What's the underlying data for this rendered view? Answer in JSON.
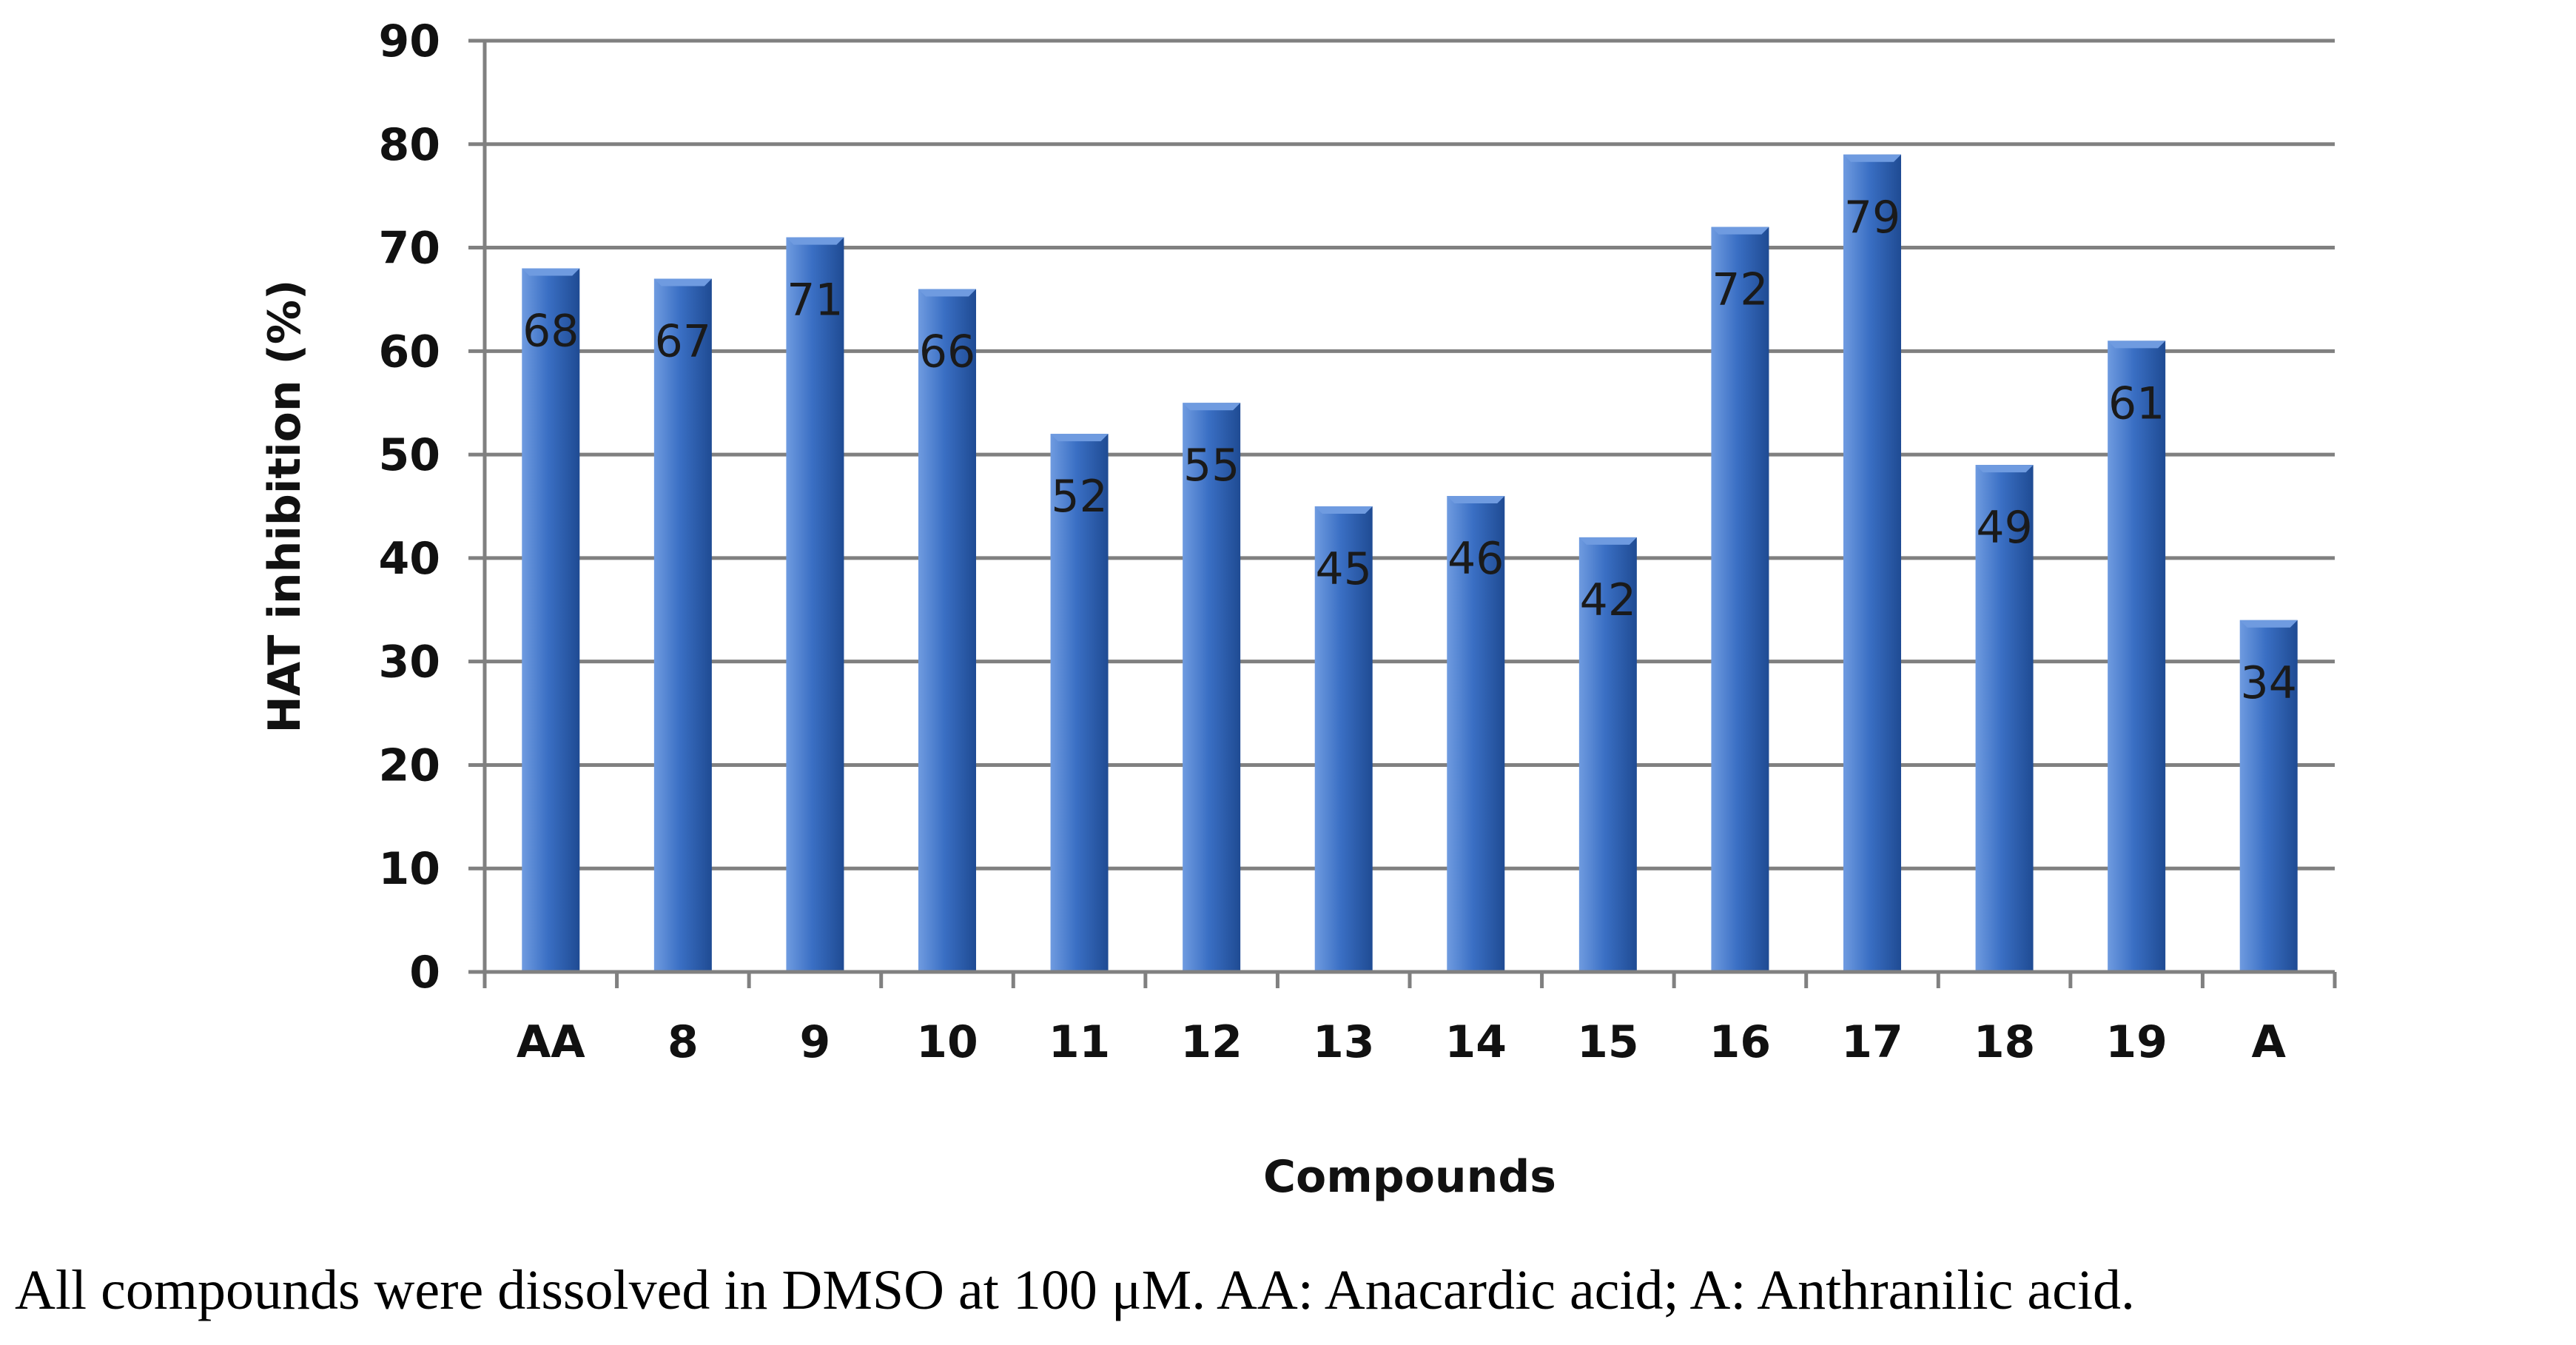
{
  "chart_data": {
    "type": "bar",
    "title": "",
    "xlabel": "Compounds",
    "ylabel": "HAT inhibition (%)",
    "categories": [
      "AA",
      "8",
      "9",
      "10",
      "11",
      "12",
      "13",
      "14",
      "15",
      "16",
      "17",
      "18",
      "19",
      "A"
    ],
    "values": [
      68,
      67,
      71,
      66,
      52,
      55,
      45,
      46,
      42,
      72,
      79,
      49,
      61,
      34
    ],
    "data_labels": [
      "68",
      "67",
      "71",
      "66",
      "52",
      "55",
      "45",
      "46",
      "42",
      "72",
      "79",
      "49",
      "61",
      "34"
    ],
    "ylim": [
      0,
      90
    ],
    "yticks": [
      0,
      10,
      20,
      30,
      40,
      50,
      60,
      70,
      80,
      90
    ],
    "grid": true,
    "legend": "none",
    "colors": {
      "bar_light": "#6f9be0",
      "bar": "#3a6fc4",
      "bar_dark": "#1f4b93",
      "grid": "#808080",
      "axis": "#808080"
    }
  },
  "caption": "All compounds were dissolved in DMSO at 100 μM. AA: Anacardic acid; A: Anthranilic acid."
}
